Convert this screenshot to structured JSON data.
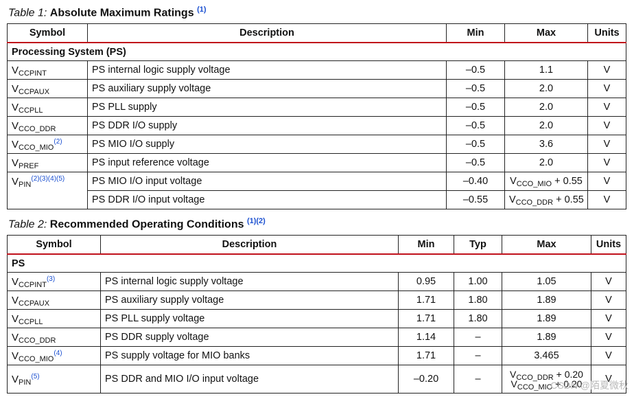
{
  "table1": {
    "caption_num": "Table  1:",
    "caption_title": "Absolute Maximum Ratings",
    "caption_note": "(1)",
    "headers": [
      "Symbol",
      "Description",
      "Min",
      "Max",
      "Units"
    ],
    "section": "Processing System (PS)",
    "rows": [
      {
        "sym": "V",
        "sub": "CCPINT",
        "sup": "",
        "desc": "PS internal logic supply voltage",
        "min": "–0.5",
        "max": "1.1",
        "max_sub": "",
        "max_suffix": "",
        "unit": "V"
      },
      {
        "sym": "V",
        "sub": "CCPAUX",
        "sup": "",
        "desc": "PS auxiliary supply voltage",
        "min": "–0.5",
        "max": "2.0",
        "max_sub": "",
        "max_suffix": "",
        "unit": "V"
      },
      {
        "sym": "V",
        "sub": "CCPLL",
        "sup": "",
        "desc": "PS PLL supply",
        "min": "–0.5",
        "max": "2.0",
        "max_sub": "",
        "max_suffix": "",
        "unit": "V"
      },
      {
        "sym": "V",
        "sub": "CCO_DDR",
        "sup": "",
        "desc": "PS DDR I/O supply",
        "min": "–0.5",
        "max": "2.0",
        "max_sub": "",
        "max_suffix": "",
        "unit": "V"
      },
      {
        "sym": "V",
        "sub": "CCO_MIO",
        "sup": "(2)",
        "desc": "PS MIO I/O supply",
        "min": "–0.5",
        "max": "3.6",
        "max_sub": "",
        "max_suffix": "",
        "unit": "V"
      },
      {
        "sym": "V",
        "sub": "PREF",
        "sup": "",
        "desc": "PS input reference voltage",
        "min": "–0.5",
        "max": "2.0",
        "max_sub": "",
        "max_suffix": "",
        "unit": "V"
      },
      {
        "sym": "V",
        "sub": "PIN",
        "sup": "(2)(3)(4)(5)",
        "desc": "PS MIO I/O input voltage",
        "min": "–0.40",
        "max": "V",
        "max_sub": "CCO_MIO",
        "max_suffix": " + 0.55",
        "unit": "V"
      },
      {
        "sym": "",
        "sub": "",
        "sup": "",
        "desc": "PS DDR I/O input voltage",
        "min": "–0.55",
        "max": "V",
        "max_sub": "CCO_DDR",
        "max_suffix": " + 0.55",
        "unit": "V"
      }
    ]
  },
  "table2": {
    "caption_num": "Table  2:",
    "caption_title": "Recommended Operating Conditions",
    "caption_note": "(1)(2)",
    "headers": [
      "Symbol",
      "Description",
      "Min",
      "Typ",
      "Max",
      "Units"
    ],
    "section": "PS",
    "rows": [
      {
        "sym": "V",
        "sub": "CCPINT",
        "sup": "(3)",
        "desc": "PS internal logic supply voltage",
        "min": "0.95",
        "typ": "1.00",
        "max": "1.05",
        "unit": "V"
      },
      {
        "sym": "V",
        "sub": "CCPAUX",
        "sup": "",
        "desc": "PS auxiliary supply voltage",
        "min": "1.71",
        "typ": "1.80",
        "max": "1.89",
        "unit": "V"
      },
      {
        "sym": "V",
        "sub": "CCPLL",
        "sup": "",
        "desc": "PS PLL supply voltage",
        "min": "1.71",
        "typ": "1.80",
        "max": "1.89",
        "unit": "V"
      },
      {
        "sym": "V",
        "sub": "CCO_DDR",
        "sup": "",
        "desc": "PS DDR supply voltage",
        "min": "1.14",
        "typ": "–",
        "max": "1.89",
        "unit": "V"
      },
      {
        "sym": "V",
        "sub": "CCO_MIO",
        "sup": "(4)",
        "desc": "PS supply voltage for MIO banks",
        "min": "1.71",
        "typ": "–",
        "max": "3.465",
        "unit": "V"
      }
    ],
    "last_row": {
      "sym": "V",
      "sub": "PIN",
      "sup": "(5)",
      "desc": "PS DDR and MIO I/O input voltage",
      "min": "–0.20",
      "typ": "–",
      "max_line1_v": "V",
      "max_line1_sub": "CCO_DDR",
      "max_line1_suffix": " + 0.20",
      "max_line2_v": "V",
      "max_line2_sub": "CCO_MIO",
      "max_line2_suffix": " + 0.20",
      "unit": "V"
    }
  },
  "watermark": "CSDN @陌夏微秋"
}
